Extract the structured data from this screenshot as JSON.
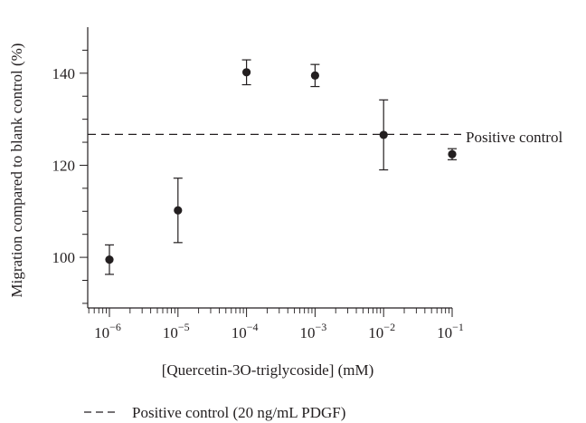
{
  "chart_data": {
    "type": "scatter",
    "title": "",
    "xlabel": "[Quercetin-3O-triglycoside] (mM)",
    "ylabel": "Migration compared to blank control (%)",
    "x_scale": "log",
    "xlim": [
      1e-06,
      0.1
    ],
    "ylim": [
      89,
      150
    ],
    "x_ticks": [
      {
        "value": 1e-06,
        "base": "10",
        "exp": "−6"
      },
      {
        "value": 1e-05,
        "base": "10",
        "exp": "−5"
      },
      {
        "value": 0.0001,
        "base": "10",
        "exp": "−4"
      },
      {
        "value": 0.001,
        "base": "10",
        "exp": "−3"
      },
      {
        "value": 0.01,
        "base": "10",
        "exp": "−2"
      },
      {
        "value": 0.1,
        "base": "10",
        "exp": "−1"
      }
    ],
    "y_ticks": [
      100,
      120,
      140
    ],
    "series": [
      {
        "points": [
          {
            "x": 1e-06,
            "y": 99.5,
            "err": 3.2
          },
          {
            "x": 1e-05,
            "y": 110.2,
            "err": 7.0
          },
          {
            "x": 0.0001,
            "y": 140.2,
            "err": 2.7
          },
          {
            "x": 0.001,
            "y": 139.5,
            "err": 2.4
          },
          {
            "x": 0.01,
            "y": 126.6,
            "err": 7.6
          },
          {
            "x": 0.1,
            "y": 122.4,
            "err": 1.2
          }
        ]
      }
    ],
    "reference_line": {
      "y": 126.7,
      "label": "Positive control",
      "style": "dashed"
    },
    "legend": {
      "position": "bottom-left",
      "entries": [
        {
          "label": "Positive control (20 ng/mL PDGF)",
          "style": "dashed"
        }
      ]
    },
    "grid": false
  }
}
